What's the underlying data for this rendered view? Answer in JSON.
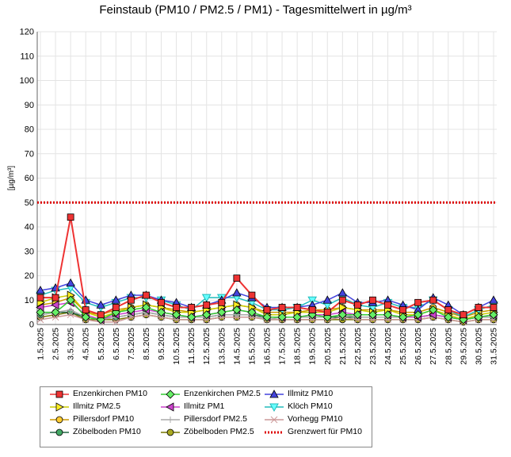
{
  "title": "Feinstaub (PM10 / PM2.5 / PM1) -  Tagesmittelwert in µg/m³",
  "chart_data": {
    "type": "line",
    "ylabel": "[µg/m³]",
    "ylim": [
      0,
      120
    ],
    "yticks": [
      0,
      10,
      20,
      30,
      40,
      50,
      60,
      70,
      80,
      90,
      100,
      110,
      120
    ],
    "grid": true,
    "legend_position": "bottom",
    "categories": [
      "1.5.2025",
      "2.5.2025",
      "3.5.2025",
      "4.5.2025",
      "5.5.2025",
      "6.5.2025",
      "7.5.2025",
      "8.5.2025",
      "9.5.2025",
      "10.5.2025",
      "11.5.2025",
      "12.5.2025",
      "13.5.2025",
      "14.5.2025",
      "15.5.2025",
      "16.5.2025",
      "17.5.2025",
      "18.5.2025",
      "19.5.2025",
      "20.5.2025",
      "21.5.2025",
      "22.5.2025",
      "23.5.2025",
      "24.5.2025",
      "25.5.2025",
      "26.5.2025",
      "27.5.2025",
      "28.5.2025",
      "29.5.2025",
      "30.5.2025",
      "31.5.2025"
    ],
    "limit": {
      "name": "Grenzwert für PM10",
      "value": 50,
      "color": "#dd0000"
    },
    "series": [
      {
        "name": "Enzenkirchen PM10",
        "color": "#ee3333",
        "fill": "#ee3333",
        "marker": "square",
        "values": [
          11,
          11,
          44,
          6,
          4,
          7,
          10,
          12,
          9,
          7,
          7,
          8,
          9,
          19,
          12,
          6,
          7,
          7,
          6,
          5,
          10,
          8,
          10,
          8,
          6,
          9,
          10,
          6,
          4,
          7,
          7
        ]
      },
      {
        "name": "Enzenkirchen PM2.5",
        "color": "#33cc33",
        "fill": "#66ee66",
        "marker": "diamond",
        "values": [
          5,
          5,
          10,
          3,
          2,
          5,
          6,
          7,
          5,
          4,
          3,
          4,
          5,
          6,
          5,
          3,
          3,
          3,
          4,
          3,
          4,
          4,
          4,
          4,
          3,
          4,
          6,
          3,
          2,
          3,
          4
        ]
      },
      {
        "name": "Illmitz PM10",
        "color": "#4444dd",
        "fill": "#4444dd",
        "marker": "triangle-up",
        "values": [
          14,
          15,
          17,
          10,
          8,
          10,
          12,
          12,
          10,
          9,
          7,
          8,
          10,
          13,
          11,
          7,
          7,
          7,
          8,
          10,
          13,
          9,
          9,
          10,
          8,
          6,
          11,
          8,
          4,
          7,
          10
        ]
      },
      {
        "name": "Illmitz PM2.5",
        "color": "#cccc00",
        "fill": "#ffee22",
        "marker": "triangle-right",
        "values": [
          9,
          11,
          12,
          5,
          3,
          5,
          7,
          8,
          7,
          5,
          5,
          6,
          7,
          8,
          7,
          4,
          4,
          5,
          5,
          5,
          7,
          6,
          5,
          6,
          4,
          4,
          6,
          4,
          2,
          4,
          5
        ]
      },
      {
        "name": "Illmitz PM1",
        "color": "#cc44cc",
        "fill": "#cc44cc",
        "marker": "triangle-left",
        "values": [
          7,
          8,
          9,
          4,
          2,
          4,
          5,
          6,
          5,
          4,
          3,
          4,
          5,
          6,
          5,
          3,
          3,
          3,
          4,
          4,
          5,
          4,
          4,
          4,
          3,
          3,
          4,
          3,
          2,
          3,
          4
        ]
      },
      {
        "name": "Klöch PM10",
        "color": "#22bbbb",
        "fill": "#66ffff",
        "marker": "triangle-down",
        "values": [
          12,
          14,
          15,
          9,
          7,
          9,
          11,
          11,
          10,
          8,
          6,
          11,
          11,
          11,
          9,
          6,
          6,
          7,
          10,
          8,
          11,
          8,
          7,
          9,
          7,
          7,
          10,
          6,
          3,
          6,
          8
        ]
      },
      {
        "name": "Pillersdorf PM10",
        "color": "#cc9900",
        "fill": "#ffcc33",
        "marker": "circle",
        "values": [
          8,
          9,
          11,
          5,
          4,
          6,
          7,
          8,
          7,
          6,
          5,
          6,
          7,
          8,
          7,
          5,
          5,
          5,
          6,
          6,
          7,
          6,
          6,
          6,
          5,
          5,
          7,
          5,
          3,
          5,
          6
        ]
      },
      {
        "name": "Pillersdorf PM2.5",
        "color": "#aaaaaa",
        "fill": "#aaaaaa",
        "marker": "plus",
        "values": [
          4,
          5,
          6,
          3,
          2,
          3,
          4,
          5,
          4,
          3,
          3,
          3,
          4,
          4,
          4,
          2,
          3,
          3,
          3,
          3,
          4,
          3,
          3,
          3,
          3,
          3,
          4,
          3,
          2,
          3,
          3
        ]
      },
      {
        "name": "Vorhegg PM10",
        "color": "#cc9999",
        "fill": "#cc9999",
        "marker": "cross",
        "values": [
          2,
          3,
          4,
          2,
          1,
          1,
          3,
          4,
          3,
          2,
          2,
          2,
          3,
          3,
          3,
          2,
          2,
          2,
          2,
          2,
          3,
          2,
          2,
          2,
          2,
          2,
          3,
          2,
          1,
          2,
          2
        ]
      },
      {
        "name": "Zöbelboden PM10",
        "color": "#226644",
        "fill": "#44aa66",
        "marker": "circle",
        "values": [
          4,
          5,
          5,
          3,
          2,
          3,
          4,
          5,
          4,
          3,
          3,
          3,
          4,
          4,
          4,
          3,
          3,
          3,
          3,
          3,
          3,
          3,
          3,
          3,
          3,
          3,
          4,
          3,
          2,
          3,
          3
        ]
      },
      {
        "name": "Zöbelboden PM2.5",
        "color": "#777700",
        "fill": "#aaaa22",
        "marker": "circle",
        "values": [
          3,
          4,
          5,
          2,
          2,
          2,
          3,
          4,
          3,
          2,
          2,
          2,
          3,
          3,
          3,
          2,
          2,
          2,
          2,
          2,
          2,
          2,
          2,
          2,
          2,
          2,
          3,
          2,
          1,
          2,
          2
        ]
      }
    ]
  }
}
